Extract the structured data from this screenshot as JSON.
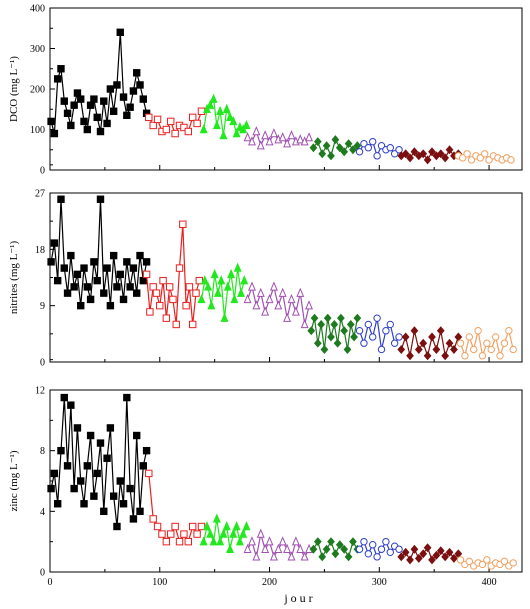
{
  "chart_data": [
    {
      "type": "line",
      "ylabel": "DCO (mg L⁻¹)",
      "ylim": [
        0,
        400
      ],
      "yticks": [
        0,
        100,
        200,
        300,
        400
      ],
      "xlim": [
        0,
        430
      ],
      "xticks": [
        0,
        100,
        200,
        300,
        400
      ],
      "series": [
        {
          "color": "#000000",
          "marker": "square-filled",
          "x": [
            1,
            4,
            7,
            10,
            13,
            16,
            19,
            22,
            25,
            28,
            31,
            34,
            37,
            40,
            43,
            46,
            49,
            52,
            55,
            58,
            61,
            64,
            67,
            70,
            73,
            76,
            79,
            82,
            85,
            88
          ],
          "y": [
            120,
            90,
            225,
            250,
            170,
            140,
            110,
            160,
            190,
            175,
            120,
            100,
            160,
            175,
            130,
            95,
            170,
            115,
            200,
            145,
            210,
            340,
            180,
            135,
            155,
            195,
            240,
            210,
            175,
            140
          ]
        },
        {
          "color": "#e8201e",
          "marker": "square-open",
          "x": [
            90,
            94,
            98,
            102,
            106,
            110,
            114,
            118,
            122,
            126,
            130,
            134,
            138
          ],
          "y": [
            130,
            110,
            125,
            95,
            100,
            120,
            90,
            110,
            105,
            95,
            130,
            115,
            145
          ]
        },
        {
          "color": "#22e81e",
          "marker": "triangle-filled",
          "x": [
            140,
            143,
            146,
            149,
            152,
            155,
            158,
            161,
            164,
            167,
            170,
            173,
            176,
            179
          ],
          "y": [
            100,
            150,
            160,
            175,
            110,
            145,
            85,
            150,
            130,
            120,
            90,
            105,
            100,
            110
          ]
        },
        {
          "color": "#a050b0",
          "marker": "triangle-open",
          "x": [
            180,
            184,
            188,
            192,
            196,
            200,
            204,
            208,
            212,
            216,
            220,
            224,
            228,
            232,
            236
          ],
          "y": [
            80,
            70,
            95,
            60,
            85,
            70,
            90,
            75,
            80,
            65,
            85,
            70,
            75,
            70,
            80
          ]
        },
        {
          "color": "#1e7a1e",
          "marker": "diamond-filled",
          "x": [
            240,
            244,
            248,
            252,
            256,
            260,
            264,
            268,
            272,
            276,
            280
          ],
          "y": [
            55,
            70,
            40,
            60,
            35,
            75,
            55,
            45,
            65,
            50,
            60
          ]
        },
        {
          "color": "#2e3ec8",
          "marker": "circle-open",
          "x": [
            282,
            286,
            290,
            294,
            298,
            302,
            306,
            310,
            314,
            318
          ],
          "y": [
            45,
            65,
            55,
            70,
            35,
            60,
            50,
            55,
            40,
            50
          ]
        },
        {
          "color": "#7a1010",
          "marker": "diamond-filled",
          "x": [
            320,
            324,
            328,
            332,
            336,
            340,
            344,
            348,
            352,
            356,
            360,
            364,
            368,
            372
          ],
          "y": [
            35,
            40,
            30,
            45,
            35,
            40,
            25,
            45,
            35,
            40,
            30,
            50,
            35,
            40
          ]
        },
        {
          "color": "#f0a060",
          "marker": "circle-open",
          "x": [
            372,
            376,
            380,
            384,
            388,
            392,
            396,
            400,
            404,
            408,
            412,
            416,
            420
          ],
          "y": [
            35,
            30,
            40,
            25,
            35,
            30,
            40,
            25,
            35,
            30,
            25,
            30,
            25
          ]
        }
      ]
    },
    {
      "type": "line",
      "ylabel": "nitrites (mg L⁻¹)",
      "ylim": [
        0,
        27
      ],
      "yticks": [
        0,
        9,
        18,
        27
      ],
      "xlim": [
        0,
        430
      ],
      "xticks": [
        0,
        100,
        200,
        300,
        400
      ],
      "series": [
        {
          "color": "#000000",
          "marker": "square-filled",
          "x": [
            1,
            4,
            7,
            10,
            13,
            16,
            19,
            22,
            25,
            28,
            31,
            34,
            37,
            40,
            43,
            46,
            49,
            52,
            55,
            58,
            61,
            64,
            67,
            70,
            73,
            76,
            79,
            82,
            85,
            88
          ],
          "y": [
            16,
            19,
            13,
            26,
            15,
            11,
            17,
            12,
            14,
            9,
            15,
            12,
            10,
            16,
            13,
            26,
            11,
            15,
            9,
            17,
            12,
            14,
            10,
            16,
            12,
            15,
            11,
            17,
            13,
            16
          ]
        },
        {
          "color": "#e8201e",
          "marker": "square-open",
          "x": [
            88,
            91,
            94,
            97,
            100,
            103,
            106,
            109,
            112,
            115,
            118,
            121,
            124,
            127,
            130,
            133,
            136
          ],
          "y": [
            14,
            8,
            12,
            11,
            9,
            13,
            7,
            12,
            10,
            6,
            15,
            22,
            9,
            12,
            6,
            11,
            13
          ]
        },
        {
          "color": "#22e81e",
          "marker": "triangle-filled",
          "x": [
            138,
            141,
            144,
            147,
            150,
            153,
            156,
            159,
            162,
            165,
            168,
            171,
            174,
            177
          ],
          "y": [
            10,
            13,
            12,
            9,
            14,
            11,
            13,
            7,
            12,
            14,
            10,
            15,
            11,
            13
          ]
        },
        {
          "color": "#a050b0",
          "marker": "triangle-open",
          "x": [
            180,
            184,
            188,
            192,
            196,
            200,
            204,
            208,
            212,
            216,
            220,
            224,
            228,
            232,
            236
          ],
          "y": [
            10,
            12,
            9,
            11,
            8,
            10,
            12,
            9,
            11,
            7,
            10,
            8,
            11,
            6,
            9
          ]
        },
        {
          "color": "#1e7a1e",
          "marker": "diamond-filled",
          "x": [
            238,
            241,
            244,
            247,
            250,
            253,
            256,
            259,
            262,
            265,
            268,
            271,
            274,
            277,
            280
          ],
          "y": [
            5,
            7,
            3,
            6,
            2,
            7,
            4,
            6,
            3,
            7,
            5,
            2,
            6,
            4,
            7
          ]
        },
        {
          "color": "#2e3ec8",
          "marker": "circle-open",
          "x": [
            282,
            286,
            290,
            294,
            298,
            302,
            306,
            310,
            314,
            318
          ],
          "y": [
            5,
            3,
            6,
            4,
            7,
            2,
            5,
            6,
            3,
            4
          ]
        },
        {
          "color": "#7a1010",
          "marker": "diamond-filled",
          "x": [
            320,
            324,
            328,
            332,
            336,
            340,
            344,
            348,
            352,
            356,
            360,
            364,
            368,
            372
          ],
          "y": [
            2,
            4,
            1,
            5,
            2,
            3,
            1,
            4,
            2,
            5,
            1,
            3,
            2,
            4
          ]
        },
        {
          "color": "#f0a060",
          "marker": "circle-open",
          "x": [
            374,
            378,
            382,
            386,
            390,
            394,
            398,
            402,
            406,
            410,
            414,
            418,
            422
          ],
          "y": [
            3,
            1,
            4,
            2,
            5,
            1,
            3,
            2,
            4,
            1,
            3,
            5,
            2
          ]
        }
      ]
    },
    {
      "type": "line",
      "ylabel": "zinc (mg L⁻¹)",
      "ylim": [
        0,
        12
      ],
      "yticks": [
        0,
        4,
        8,
        12
      ],
      "xlim": [
        0,
        430
      ],
      "xticks": [
        0,
        100,
        200,
        300,
        400
      ],
      "xlabel": "jour",
      "series": [
        {
          "color": "#000000",
          "marker": "square-filled",
          "x": [
            1,
            4,
            7,
            10,
            13,
            16,
            19,
            22,
            25,
            28,
            31,
            34,
            37,
            40,
            43,
            46,
            49,
            52,
            55,
            58,
            61,
            64,
            67,
            70,
            73,
            76,
            79,
            82,
            85,
            88
          ],
          "y": [
            5.5,
            6.5,
            4.5,
            8,
            11.5,
            7,
            11,
            5.5,
            9.5,
            6,
            4.5,
            7,
            9,
            5,
            6.5,
            8.5,
            4,
            7.5,
            9.5,
            5,
            3,
            6,
            4.5,
            11.5,
            5.5,
            3.5,
            9,
            4,
            7,
            8
          ]
        },
        {
          "color": "#e8201e",
          "marker": "square-open",
          "x": [
            90,
            94,
            98,
            102,
            106,
            110,
            114,
            118,
            122,
            126,
            130,
            134,
            138
          ],
          "y": [
            6.5,
            3.5,
            3,
            2.5,
            2,
            2.5,
            3,
            2,
            2.5,
            2,
            3,
            2.5,
            3
          ]
        },
        {
          "color": "#22e81e",
          "marker": "triangle-filled",
          "x": [
            140,
            143,
            146,
            149,
            152,
            155,
            158,
            161,
            164,
            167,
            170,
            173,
            176,
            179
          ],
          "y": [
            2,
            3,
            2.5,
            2,
            3.5,
            2,
            2.5,
            3,
            1.5,
            2.5,
            3,
            2,
            2.5,
            3
          ]
        },
        {
          "color": "#a050b0",
          "marker": "triangle-open",
          "x": [
            180,
            184,
            188,
            192,
            196,
            200,
            204,
            208,
            212,
            216,
            220,
            224,
            228,
            232,
            236
          ],
          "y": [
            1.5,
            2,
            1,
            2.5,
            1.5,
            2,
            1,
            1.5,
            2,
            1.5,
            1,
            2,
            1.5,
            1,
            1.5
          ]
        },
        {
          "color": "#1e7a1e",
          "marker": "diamond-filled",
          "x": [
            240,
            244,
            248,
            252,
            256,
            260,
            264,
            268,
            272,
            276,
            280
          ],
          "y": [
            1.5,
            2,
            1,
            1.5,
            2,
            1.2,
            1.8,
            1.5,
            1,
            2,
            1.5
          ]
        },
        {
          "color": "#2e3ec8",
          "marker": "circle-open",
          "x": [
            282,
            286,
            290,
            294,
            298,
            302,
            306,
            310,
            314,
            318
          ],
          "y": [
            1.5,
            2,
            1.2,
            1.8,
            1,
            1.5,
            2,
            1.3,
            1.7,
            1.5
          ]
        },
        {
          "color": "#7a1010",
          "marker": "diamond-filled",
          "x": [
            320,
            324,
            328,
            332,
            336,
            340,
            344,
            348,
            352,
            356,
            360,
            364,
            368,
            372
          ],
          "y": [
            1,
            1.3,
            0.8,
            1.5,
            0.9,
            1.2,
            1.6,
            0.8,
            1.1,
            1.4,
            1,
            1.3,
            0.9,
            1.2
          ]
        },
        {
          "color": "#f0a060",
          "marker": "circle-open",
          "x": [
            374,
            378,
            382,
            386,
            390,
            394,
            398,
            402,
            406,
            410,
            414,
            418,
            422
          ],
          "y": [
            0.8,
            0.5,
            0.7,
            0.4,
            0.6,
            0.5,
            0.8,
            0.4,
            0.6,
            0.5,
            0.7,
            0.4,
            0.6
          ]
        }
      ]
    }
  ]
}
